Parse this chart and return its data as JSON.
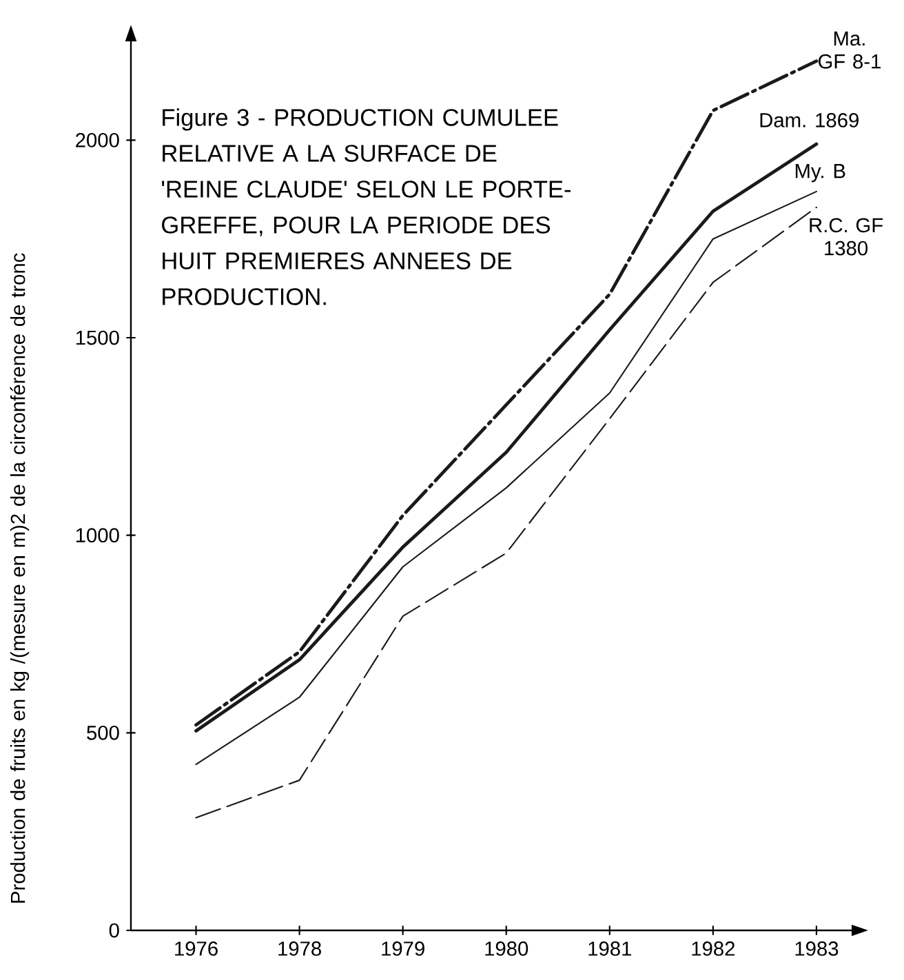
{
  "chart_data": {
    "type": "line",
    "title": "Figure 3 - PRODUCTION CUMULEE RELATIVE A LA SURFACE DE 'REINE CLAUDE' SELON LE PORTE-GREFFE, POUR LA PERIODE DES HUIT PREMIERES ANNEES DE PRODUCTION.",
    "ylabel": "Production de fruits en kg /(mesure en m)2 de la circonférence de tronc",
    "categories": [
      "1976",
      "1978",
      "1979",
      "1980",
      "1981",
      "1982",
      "1983"
    ],
    "series": [
      {
        "name": "Ma. GF 8-1",
        "color": "#1a1a1a",
        "line_style": "dashdot",
        "values": [
          520,
          705,
          1050,
          1330,
          1610,
          2075,
          2200
        ]
      },
      {
        "name": "Dam. 1869",
        "color": "#1a1a1a",
        "line_style": "solid",
        "values": [
          505,
          685,
          970,
          1210,
          1520,
          1820,
          1990
        ]
      },
      {
        "name": "My. B",
        "color": "#1a1a1a",
        "line_style": "solid",
        "values": [
          420,
          590,
          920,
          1120,
          1360,
          1750,
          1870
        ]
      },
      {
        "name": "R.C. GF 1380",
        "color": "#1a1a1a",
        "line_style": "dashed",
        "values": [
          285,
          380,
          795,
          955,
          1295,
          1640,
          1830
        ]
      }
    ],
    "ylim": [
      0,
      2250
    ],
    "yticks": [
      0,
      500,
      1000,
      1500,
      2000
    ]
  }
}
